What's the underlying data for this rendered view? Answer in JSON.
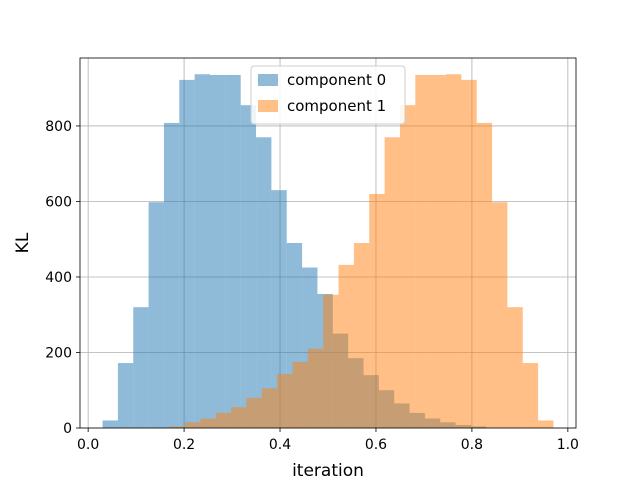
{
  "chart_data": {
    "type": "bar",
    "subtype": "overlapping-histogram",
    "title": "",
    "xlabel": "iteration",
    "ylabel": "KL",
    "xlim": [
      -0.017,
      1.017
    ],
    "ylim": [
      0,
      980
    ],
    "xticks": [
      "0.0",
      "0.2",
      "0.4",
      "0.6",
      "0.8",
      "1.0"
    ],
    "yticks": [
      "0",
      "200",
      "400",
      "600",
      "800"
    ],
    "grid": true,
    "legend_position": "upper-center",
    "series": [
      {
        "name": "component 0",
        "color": "#1f77b4",
        "alpha": 0.5,
        "bins": [
          [
            0.03,
            0.062,
            20
          ],
          [
            0.062,
            0.094,
            172
          ],
          [
            0.094,
            0.126,
            320
          ],
          [
            0.126,
            0.158,
            598
          ],
          [
            0.158,
            0.19,
            808
          ],
          [
            0.19,
            0.222,
            922
          ],
          [
            0.222,
            0.254,
            937
          ],
          [
            0.254,
            0.286,
            935
          ],
          [
            0.286,
            0.318,
            935
          ],
          [
            0.318,
            0.35,
            855
          ],
          [
            0.35,
            0.382,
            770
          ],
          [
            0.382,
            0.414,
            630
          ],
          [
            0.414,
            0.446,
            490
          ],
          [
            0.446,
            0.478,
            425
          ],
          [
            0.478,
            0.51,
            355
          ],
          [
            0.51,
            0.542,
            250
          ],
          [
            0.542,
            0.574,
            185
          ],
          [
            0.574,
            0.606,
            140
          ],
          [
            0.606,
            0.638,
            100
          ],
          [
            0.638,
            0.67,
            65
          ],
          [
            0.67,
            0.702,
            40
          ],
          [
            0.702,
            0.734,
            25
          ],
          [
            0.734,
            0.766,
            15
          ],
          [
            0.766,
            0.798,
            8
          ],
          [
            0.798,
            0.83,
            4
          ]
        ]
      },
      {
        "name": "component 1",
        "color": "#ff7f0e",
        "alpha": 0.5,
        "bins": [
          [
            0.17,
            0.202,
            4
          ],
          [
            0.202,
            0.234,
            15
          ],
          [
            0.234,
            0.266,
            25
          ],
          [
            0.266,
            0.298,
            40
          ],
          [
            0.298,
            0.33,
            55
          ],
          [
            0.33,
            0.362,
            80
          ],
          [
            0.362,
            0.394,
            105
          ],
          [
            0.394,
            0.426,
            143
          ],
          [
            0.426,
            0.458,
            175
          ],
          [
            0.458,
            0.49,
            210
          ],
          [
            0.49,
            0.522,
            353
          ],
          [
            0.522,
            0.554,
            432
          ],
          [
            0.554,
            0.586,
            490
          ],
          [
            0.586,
            0.618,
            620
          ],
          [
            0.618,
            0.65,
            770
          ],
          [
            0.65,
            0.682,
            855
          ],
          [
            0.682,
            0.714,
            935
          ],
          [
            0.714,
            0.746,
            935
          ],
          [
            0.746,
            0.778,
            937
          ],
          [
            0.778,
            0.81,
            922
          ],
          [
            0.81,
            0.842,
            808
          ],
          [
            0.842,
            0.874,
            598
          ],
          [
            0.874,
            0.906,
            320
          ],
          [
            0.906,
            0.938,
            172
          ],
          [
            0.938,
            0.97,
            20
          ]
        ]
      }
    ]
  }
}
